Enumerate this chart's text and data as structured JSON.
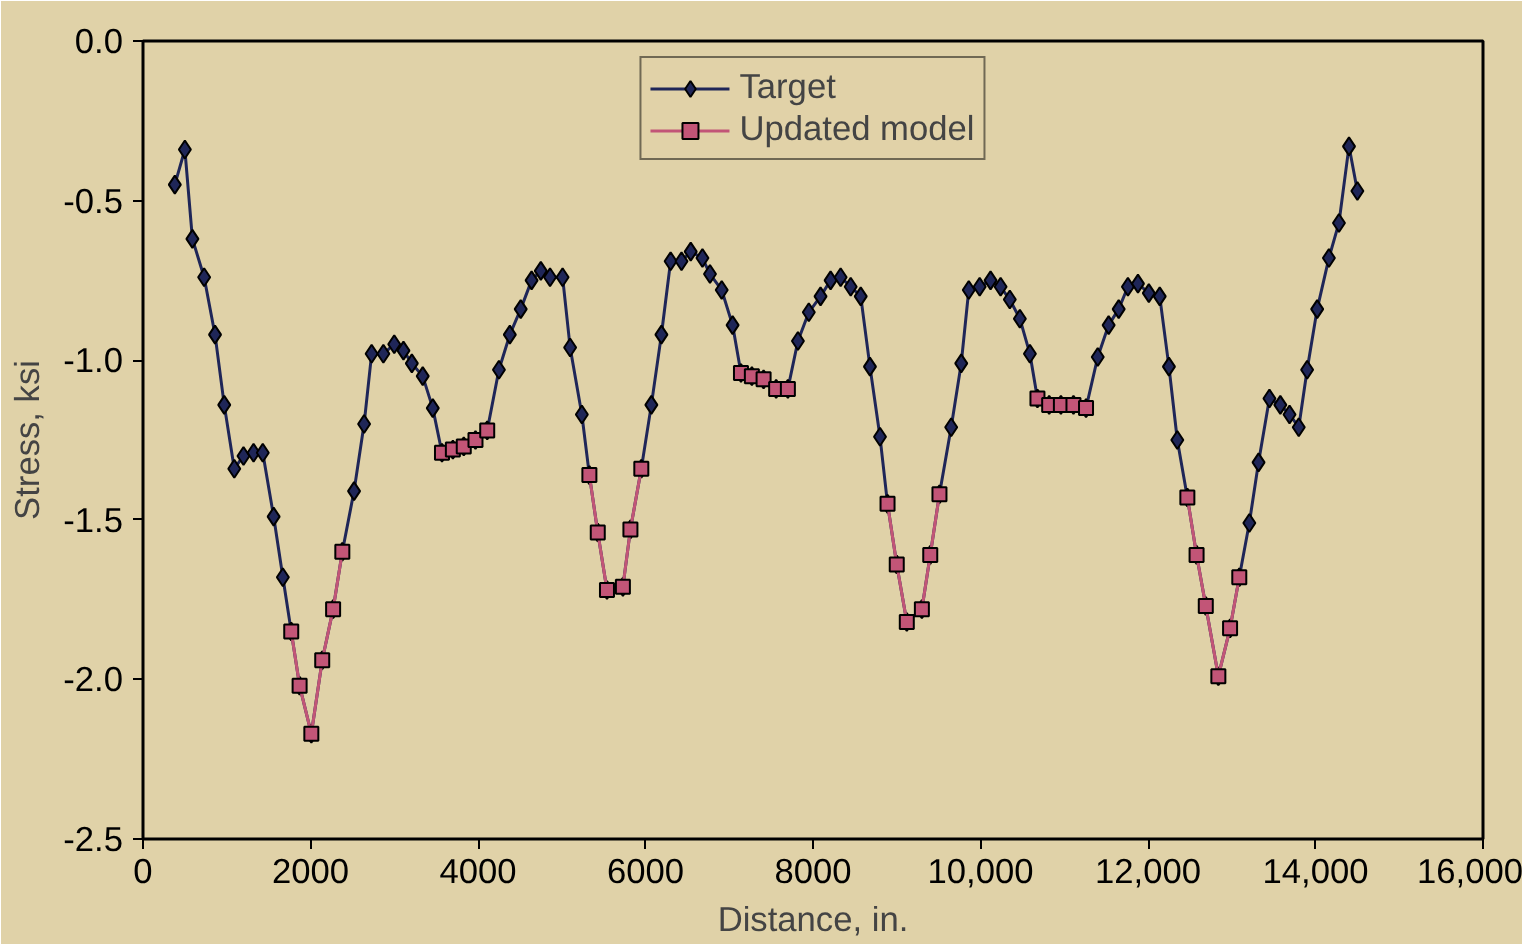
{
  "chart_data": {
    "type": "line",
    "xlabel": "Distance, in.",
    "ylabel": "Stress, ksi",
    "xlim": [
      0,
      16000
    ],
    "xticks": [
      0,
      2000,
      4000,
      6000,
      8000,
      {
        "value": 10000,
        "label": "10,000"
      },
      {
        "value": 12000,
        "label": "12,000"
      },
      {
        "value": 14000,
        "label": "14,000"
      },
      {
        "value": 16000,
        "label": "16,000"
      }
    ],
    "ylim": [
      -2.5,
      0
    ],
    "yticks": [
      {
        "value": 0,
        "label": "0.0"
      },
      {
        "value": -0.5,
        "label": "-0.5"
      },
      {
        "value": -1,
        "label": "-1.0"
      },
      {
        "value": -1.5,
        "label": "-1.5"
      },
      {
        "value": -2,
        "label": "-2.0"
      },
      {
        "value": -2.5,
        "label": "-2.5"
      }
    ],
    "grid": false,
    "legend": "top",
    "series": [
      {
        "name": "Target",
        "color": "#1f2658",
        "marker": "diamond",
        "x": [
          380,
          500,
          590,
          730,
          860,
          970,
          1090,
          1200,
          1320,
          1430,
          1560,
          1670,
          1770,
          1870,
          2010,
          2140,
          2270,
          2380,
          2520,
          2640,
          2730,
          2870,
          3000,
          3110,
          3210,
          3340,
          3460,
          3570,
          3700,
          3830,
          3970,
          4110,
          4250,
          4380,
          4510,
          4640,
          4750,
          4860,
          5010,
          5100,
          5240,
          5330,
          5430,
          5540,
          5730,
          5820,
          5950,
          6070,
          6190,
          6300,
          6430,
          6540,
          6680,
          6770,
          6910,
          7040,
          7140,
          7270,
          7410,
          7560,
          7700,
          7820,
          7950,
          8090,
          8210,
          8330,
          8450,
          8570,
          8680,
          8800,
          8890,
          9000,
          9120,
          9300,
          9400,
          9510,
          9650,
          9770,
          9860,
          9990,
          10120,
          10240,
          10350,
          10470,
          10590,
          10680,
          10820,
          10960,
          11110,
          11260,
          11400,
          11530,
          11650,
          11760,
          11880,
          12010,
          12140,
          12250,
          12350,
          12470,
          12580,
          12690,
          12840,
          12980,
          13090,
          13210,
          13320,
          13450,
          13580,
          13690,
          13800,
          13900,
          14020,
          14160,
          14280,
          14400,
          14500
        ],
        "values": [
          -0.45,
          -0.34,
          -0.62,
          -0.74,
          -0.92,
          -1.14,
          -1.34,
          -1.3,
          -1.29,
          -1.29,
          -1.49,
          -1.68,
          -1.85,
          -2.02,
          -2.17,
          -1.94,
          -1.78,
          -1.6,
          -1.41,
          -1.2,
          -0.98,
          -0.98,
          -0.95,
          -0.97,
          -1.01,
          -1.05,
          -1.15,
          -1.29,
          -1.28,
          -1.27,
          -1.25,
          -1.22,
          -1.03,
          -0.92,
          -0.84,
          -0.75,
          -0.72,
          -0.74,
          -0.74,
          -0.96,
          -1.17,
          -1.36,
          -1.54,
          -1.72,
          -1.71,
          -1.53,
          -1.34,
          -1.14,
          -0.92,
          -0.69,
          -0.69,
          -0.66,
          -0.68,
          -0.73,
          -0.78,
          -0.89,
          -1.04,
          -1.05,
          -1.06,
          -1.09,
          -1.09,
          -0.94,
          -0.85,
          -0.8,
          -0.75,
          -0.74,
          -0.77,
          -0.8,
          -1.02,
          -1.24,
          -1.45,
          -1.64,
          -1.82,
          -1.78,
          -1.61,
          -1.42,
          -1.21,
          -1.01,
          -0.78,
          -0.77,
          -0.75,
          -0.77,
          -0.81,
          -0.87,
          -0.98,
          -1.12,
          -1.14,
          -1.14,
          -1.14,
          -1.15,
          -0.99,
          -0.89,
          -0.84,
          -0.77,
          -0.76,
          -0.79,
          -0.8,
          -1.02,
          -1.25,
          -1.43,
          -1.61,
          -1.77,
          -1.99,
          -1.84,
          -1.68,
          -1.51,
          -1.32,
          -1.12,
          -1.14,
          -1.17,
          -1.21,
          -1.03,
          -0.84,
          -0.68,
          -0.57,
          -0.33,
          -0.47
        ]
      },
      {
        "name": "Updated model",
        "color": "#c25577",
        "marker": "square",
        "x": [
          1770,
          1870,
          2010,
          2140,
          2270,
          2380,
          3000,
          3570,
          3700,
          3830,
          3970,
          4110,
          5000,
          5330,
          5430,
          5540,
          5730,
          5820,
          5950,
          6500,
          7140,
          7270,
          7410,
          7560,
          7700,
          8300,
          8890,
          9000,
          9120,
          9300,
          9400,
          9510,
          10000,
          10680,
          10820,
          10960,
          11110,
          11260,
          12000,
          12470,
          12580,
          12690,
          12840,
          12980,
          13090
        ],
        "values": [
          -1.85,
          -2.02,
          -2.17,
          -1.94,
          -1.78,
          -1.6,
          null,
          -1.29,
          -1.28,
          -1.27,
          -1.25,
          -1.22,
          null,
          -1.36,
          -1.54,
          -1.72,
          -1.71,
          -1.53,
          -1.34,
          null,
          -1.04,
          -1.05,
          -1.06,
          -1.09,
          -1.09,
          null,
          -1.45,
          -1.64,
          -1.82,
          -1.78,
          -1.61,
          -1.42,
          null,
          -1.12,
          -1.14,
          -1.14,
          -1.14,
          -1.15,
          null,
          -1.43,
          -1.61,
          -1.77,
          -1.99,
          -1.84,
          -1.68
        ]
      }
    ]
  }
}
